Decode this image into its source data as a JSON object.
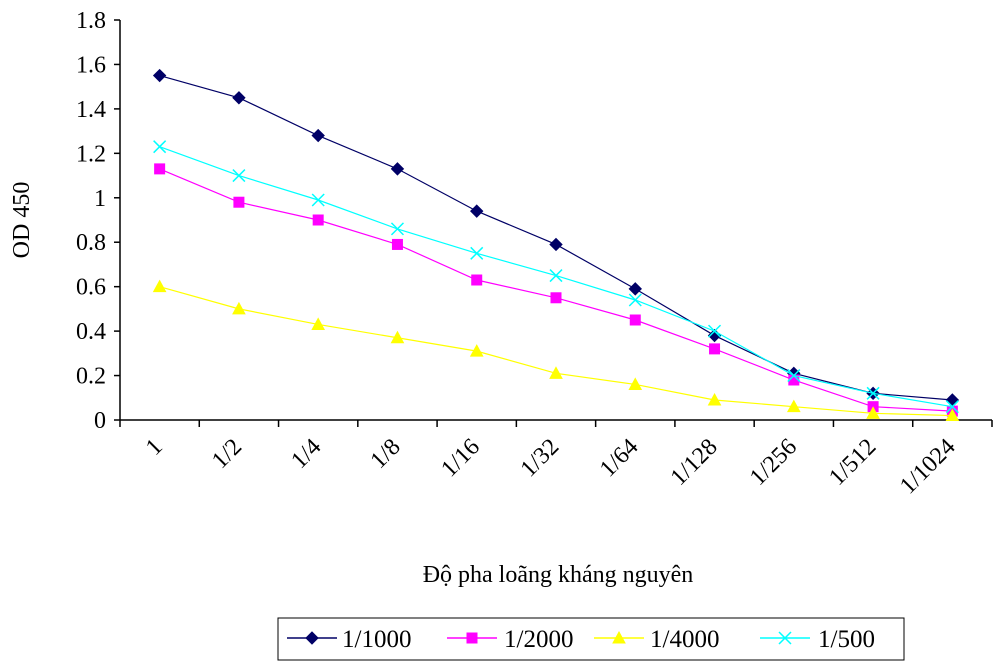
{
  "chart_data": {
    "type": "line",
    "title": "",
    "xlabel": "Độ pha loãng kháng nguyên",
    "ylabel": "OD 450",
    "categories": [
      "1",
      "1/2",
      "1/4",
      "1/8",
      "1/16",
      "1/32",
      "1/64",
      "1/128",
      "1/256",
      "1/512",
      "1/1024"
    ],
    "y_ticks": [
      "0",
      "0.2",
      "0.4",
      "0.6",
      "0.8",
      "1",
      "1.2",
      "1.4",
      "1.6",
      "1.8"
    ],
    "ylim": [
      0,
      1.8
    ],
    "grid": false,
    "legend_position": "bottom",
    "series": [
      {
        "name": "1/1000",
        "color": "#000066",
        "marker": "diamond",
        "values": [
          1.55,
          1.45,
          1.28,
          1.13,
          0.94,
          0.79,
          0.59,
          0.38,
          0.21,
          0.12,
          0.09
        ]
      },
      {
        "name": "1/2000",
        "color": "#FF00FF",
        "marker": "square",
        "values": [
          1.13,
          0.98,
          0.9,
          0.79,
          0.63,
          0.55,
          0.45,
          0.32,
          0.18,
          0.06,
          0.04
        ]
      },
      {
        "name": "1/4000",
        "color": "#FFFF00",
        "marker": "triangle",
        "values": [
          0.6,
          0.5,
          0.43,
          0.37,
          0.31,
          0.21,
          0.16,
          0.09,
          0.06,
          0.03,
          0.02
        ]
      },
      {
        "name": "1/500",
        "color": "#00FFFF",
        "marker": "x",
        "values": [
          1.23,
          1.1,
          0.99,
          0.86,
          0.75,
          0.65,
          0.54,
          0.4,
          0.2,
          0.12,
          0.06
        ]
      }
    ]
  }
}
